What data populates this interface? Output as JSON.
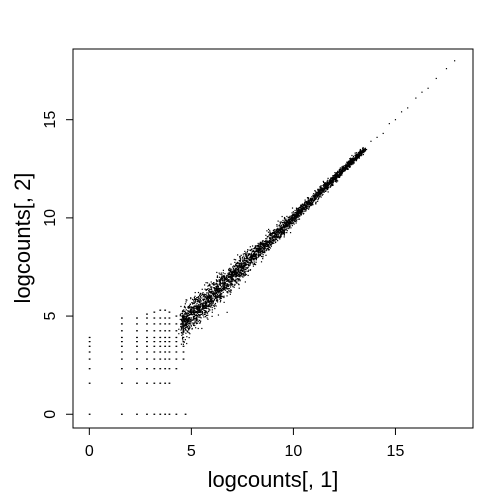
{
  "chart_data": {
    "type": "scatter",
    "title": "",
    "xlabel": "logcounts[, 1]",
    "ylabel": "logcounts[, 2]",
    "xlim": [
      -0.8,
      18.8
    ],
    "ylim": [
      -0.7,
      18.6
    ],
    "x_ticks": [
      0,
      5,
      10,
      15
    ],
    "y_ticks": [
      0,
      5,
      10,
      15
    ],
    "x_tick_labels": [
      "0",
      "5",
      "10",
      "15"
    ],
    "y_tick_labels": [
      "0",
      "5",
      "10",
      "15"
    ],
    "grid": false,
    "legend": "none",
    "point_color": "#000000",
    "series": [
      {
        "discrete_levels": [
          0,
          1.58,
          2.32,
          2.81,
          3.17,
          3.46,
          3.7,
          3.91
        ],
        "discrete_points": [
          [
            0,
            0
          ],
          [
            0,
            1.58
          ],
          [
            0,
            2.32
          ],
          [
            0,
            2.81
          ],
          [
            0,
            3.17
          ],
          [
            0,
            3.46
          ],
          [
            0,
            3.7
          ],
          [
            0,
            3.91
          ],
          [
            1.58,
            0
          ],
          [
            1.58,
            1.58
          ],
          [
            1.58,
            2.32
          ],
          [
            1.58,
            2.81
          ],
          [
            1.58,
            3.17
          ],
          [
            1.58,
            3.46
          ],
          [
            1.58,
            3.7
          ],
          [
            1.58,
            3.91
          ],
          [
            1.58,
            4.25
          ],
          [
            1.58,
            4.6
          ],
          [
            1.58,
            4.9
          ],
          [
            2.32,
            0
          ],
          [
            2.32,
            1.58
          ],
          [
            2.32,
            2.32
          ],
          [
            2.32,
            2.81
          ],
          [
            2.32,
            3.17
          ],
          [
            2.32,
            3.46
          ],
          [
            2.32,
            3.7
          ],
          [
            2.32,
            3.91
          ],
          [
            2.32,
            4.25
          ],
          [
            2.32,
            4.6
          ],
          [
            2.32,
            4.9
          ],
          [
            2.81,
            0
          ],
          [
            2.81,
            1.58
          ],
          [
            2.81,
            2.32
          ],
          [
            2.81,
            2.81
          ],
          [
            2.81,
            3.17
          ],
          [
            2.81,
            3.46
          ],
          [
            2.81,
            3.7
          ],
          [
            2.81,
            3.91
          ],
          [
            2.81,
            4.25
          ],
          [
            2.81,
            4.6
          ],
          [
            2.81,
            4.9
          ],
          [
            2.81,
            5.1
          ],
          [
            3.17,
            0
          ],
          [
            3.17,
            1.58
          ],
          [
            3.17,
            2.32
          ],
          [
            3.17,
            2.81
          ],
          [
            3.17,
            3.17
          ],
          [
            3.17,
            3.46
          ],
          [
            3.17,
            3.7
          ],
          [
            3.17,
            3.91
          ],
          [
            3.17,
            4.25
          ],
          [
            3.17,
            4.6
          ],
          [
            3.17,
            4.9
          ],
          [
            3.17,
            5.2
          ],
          [
            3.46,
            0
          ],
          [
            3.46,
            1.58
          ],
          [
            3.46,
            2.32
          ],
          [
            3.46,
            2.81
          ],
          [
            3.46,
            3.17
          ],
          [
            3.46,
            3.46
          ],
          [
            3.46,
            3.7
          ],
          [
            3.46,
            3.91
          ],
          [
            3.46,
            4.25
          ],
          [
            3.46,
            4.6
          ],
          [
            3.46,
            4.9
          ],
          [
            3.46,
            5.3
          ],
          [
            3.7,
            0
          ],
          [
            3.7,
            1.58
          ],
          [
            3.7,
            2.32
          ],
          [
            3.7,
            2.81
          ],
          [
            3.7,
            3.17
          ],
          [
            3.7,
            3.46
          ],
          [
            3.7,
            3.7
          ],
          [
            3.7,
            3.91
          ],
          [
            3.7,
            4.25
          ],
          [
            3.7,
            4.6
          ],
          [
            3.7,
            4.9
          ],
          [
            3.7,
            5.3
          ],
          [
            3.91,
            0
          ],
          [
            3.91,
            1.58
          ],
          [
            3.91,
            2.32
          ],
          [
            3.91,
            2.81
          ],
          [
            3.91,
            3.17
          ],
          [
            3.91,
            3.46
          ],
          [
            3.91,
            3.7
          ],
          [
            3.91,
            3.91
          ],
          [
            3.91,
            4.25
          ],
          [
            3.91,
            4.6
          ],
          [
            3.91,
            4.9
          ],
          [
            3.91,
            5.2
          ],
          [
            4.25,
            0
          ],
          [
            4.25,
            2.32
          ],
          [
            4.25,
            2.81
          ],
          [
            4.25,
            3.17
          ],
          [
            4.25,
            3.46
          ],
          [
            4.25,
            3.7
          ],
          [
            4.25,
            3.91
          ],
          [
            4.25,
            4.25
          ],
          [
            4.25,
            4.6
          ],
          [
            4.25,
            5.0
          ],
          [
            4.7,
            0
          ],
          [
            4.6,
            2.81
          ],
          [
            4.6,
            3.17
          ],
          [
            4.6,
            3.46
          ],
          [
            4.6,
            3.7
          ]
        ],
        "main_band": [
          {
            "x": 4.5,
            "y_center": 4.6,
            "y_spread": 0.75
          },
          {
            "x": 5.5,
            "y_center": 5.5,
            "y_spread": 0.7
          },
          {
            "x": 6.5,
            "y_center": 6.5,
            "y_spread": 0.6
          },
          {
            "x": 7.5,
            "y_center": 7.5,
            "y_spread": 0.5
          },
          {
            "x": 8.5,
            "y_center": 8.5,
            "y_spread": 0.4
          },
          {
            "x": 9.5,
            "y_center": 9.5,
            "y_spread": 0.32
          },
          {
            "x": 10.5,
            "y_center": 10.5,
            "y_spread": 0.25
          },
          {
            "x": 11.5,
            "y_center": 11.5,
            "y_spread": 0.2
          },
          {
            "x": 12.5,
            "y_center": 12.5,
            "y_spread": 0.15
          },
          {
            "x": 13.5,
            "y_center": 13.5,
            "y_spread": 0.12
          }
        ],
        "upper_tail": [
          [
            13.8,
            13.9
          ],
          [
            14.1,
            14.1
          ],
          [
            14.4,
            14.3
          ],
          [
            14.7,
            14.8
          ],
          [
            15.0,
            15.0
          ],
          [
            15.3,
            15.4
          ],
          [
            15.6,
            15.6
          ],
          [
            16.0,
            16.1
          ],
          [
            16.3,
            16.4
          ],
          [
            16.6,
            16.6
          ],
          [
            17.0,
            17.1
          ],
          [
            17.5,
            17.6
          ],
          [
            17.9,
            18.0
          ]
        ]
      }
    ]
  }
}
